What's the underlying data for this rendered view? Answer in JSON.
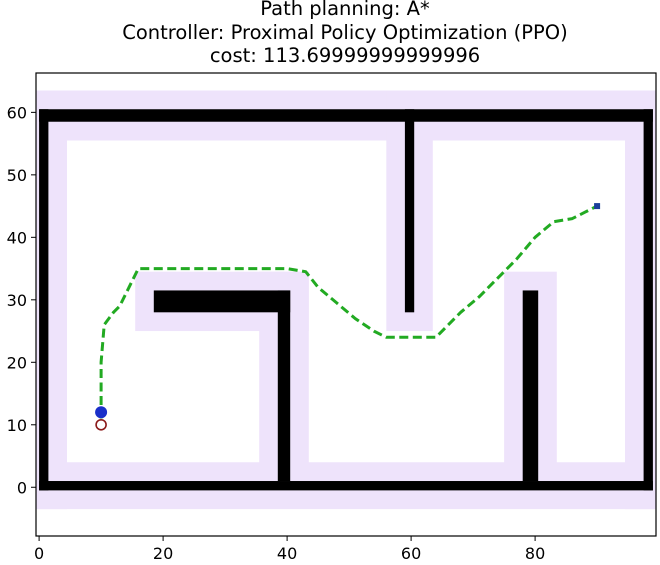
{
  "chart_data": {
    "type": "line",
    "title_lines": [
      "Path planning: A*",
      "Controller: Proximal Policy Optimization (PPO)",
      "cost: 113.69999999999996"
    ],
    "xlabel": "",
    "ylabel": "",
    "xlim": [
      -0.5,
      99.5
    ],
    "ylim": [
      -7.8,
      66.3
    ],
    "xticks": [
      0,
      20,
      40,
      60,
      80
    ],
    "yticks": [
      0,
      10,
      20,
      30,
      40,
      50,
      60
    ],
    "grid": false,
    "colors": {
      "obstacle": "#000000",
      "inflation": "#eee3fb",
      "path": "#22aa22",
      "start_marker": "#1a2fc9",
      "goal_marker": "#1a3f9a",
      "ring_marker": "#8b1a1a"
    },
    "obstacles": [
      {
        "name": "top-wall",
        "x0": 0,
        "x1": 99,
        "y0": 58.5,
        "y1": 60.5
      },
      {
        "name": "bottom-wall",
        "x0": 0,
        "x1": 99,
        "y0": -0.5,
        "y1": 1
      },
      {
        "name": "left-wall",
        "x0": 0,
        "x1": 1.5,
        "y0": -0.5,
        "y1": 60.5
      },
      {
        "name": "right-wall",
        "x0": 97.5,
        "x1": 99,
        "y0": -0.5,
        "y1": 60.5
      },
      {
        "name": "hanging-wall",
        "x0": 59,
        "x1": 60.5,
        "y0": 28,
        "y1": 60.5
      },
      {
        "name": "l-block-horizontal",
        "x0": 18.5,
        "x1": 40.5,
        "y0": 28,
        "y1": 31.5
      },
      {
        "name": "l-block-vertical",
        "x0": 38.5,
        "x1": 40.5,
        "y0": 1,
        "y1": 31.5
      },
      {
        "name": "standing-wall",
        "x0": 78,
        "x1": 80.5,
        "y0": 1,
        "y1": 31.5
      }
    ],
    "inflation_margin": 3,
    "path": {
      "name": "A* / PPO trajectory",
      "x": [
        10,
        10,
        10,
        10.5,
        12,
        13,
        14,
        15,
        16,
        20,
        30,
        40,
        43,
        45,
        48,
        51,
        54,
        56,
        60,
        64,
        66,
        68,
        71,
        74,
        77,
        80,
        83,
        86,
        88,
        90
      ],
      "y": [
        11,
        15,
        20,
        26,
        28,
        29,
        31,
        33,
        35,
        35,
        35,
        35,
        34.5,
        32,
        29.5,
        27,
        25,
        24,
        24,
        24,
        26,
        28,
        30.5,
        33.5,
        36.5,
        40,
        42.5,
        43,
        44,
        45
      ]
    },
    "start": {
      "x": 10,
      "y": 12
    },
    "ring": {
      "x": 10,
      "y": 10
    },
    "goal": {
      "x": 90,
      "y": 45
    }
  }
}
